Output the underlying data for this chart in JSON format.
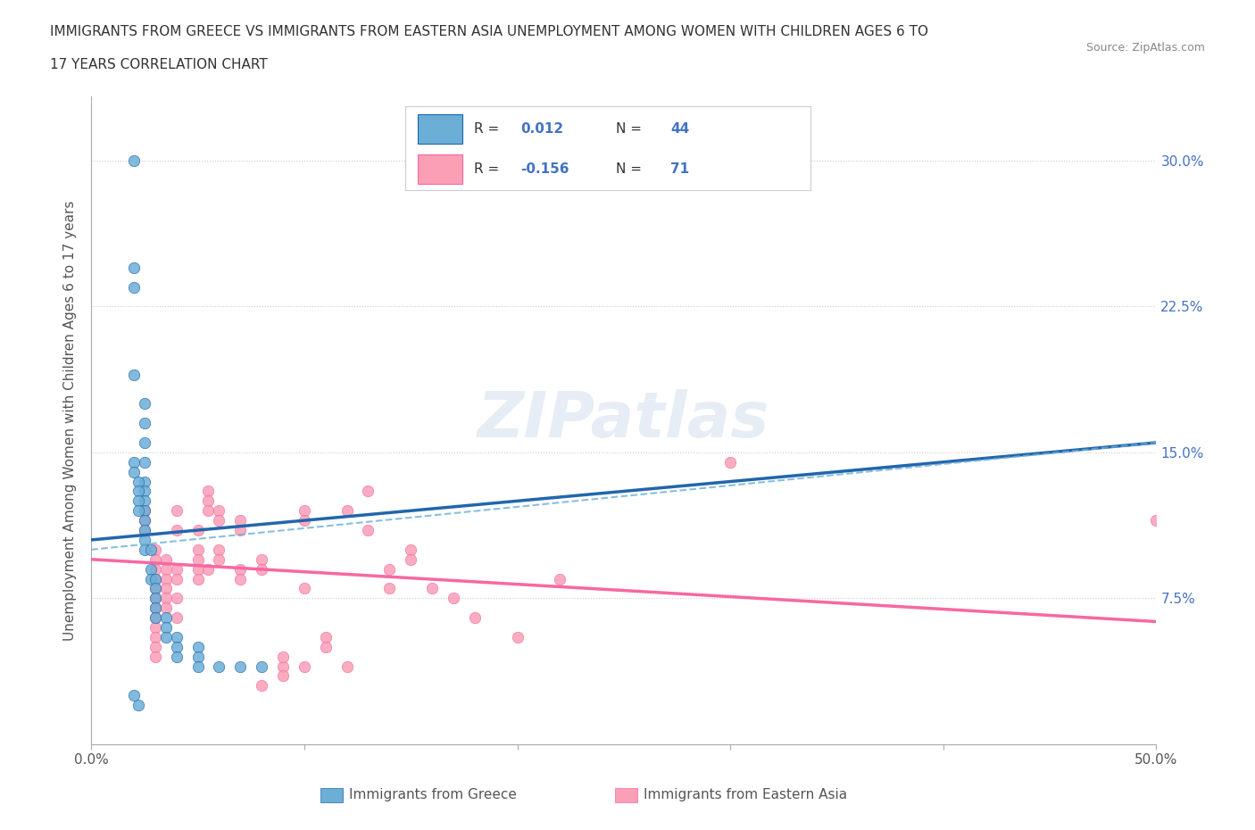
{
  "title_line1": "IMMIGRANTS FROM GREECE VS IMMIGRANTS FROM EASTERN ASIA UNEMPLOYMENT AMONG WOMEN WITH CHILDREN AGES 6 TO",
  "title_line2": "17 YEARS CORRELATION CHART",
  "source": "Source: ZipAtlas.com",
  "ylabel": "Unemployment Among Women with Children Ages 6 to 17 years",
  "xlim": [
    0.0,
    0.5
  ],
  "ylim": [
    0.0,
    0.333
  ],
  "xticks": [
    0.0,
    0.1,
    0.2,
    0.3,
    0.4,
    0.5
  ],
  "yticks": [
    0.0,
    0.075,
    0.15,
    0.225,
    0.3
  ],
  "color_greece": "#6baed6",
  "color_eastern_asia": "#fa9fb5",
  "trendline_greece_color": "#2166ac",
  "trendline_eastern_asia_color": "#f768a1",
  "background_color": "#ffffff",
  "grid_color": "#cccccc",
  "watermark": "ZIPatlas",
  "greece_scatter_x": [
    0.02,
    0.02,
    0.02,
    0.02,
    0.025,
    0.025,
    0.025,
    0.025,
    0.025,
    0.025,
    0.025,
    0.025,
    0.025,
    0.025,
    0.025,
    0.025,
    0.028,
    0.028,
    0.028,
    0.03,
    0.03,
    0.03,
    0.03,
    0.03,
    0.035,
    0.035,
    0.035,
    0.04,
    0.04,
    0.04,
    0.05,
    0.05,
    0.05,
    0.06,
    0.07,
    0.08,
    0.02,
    0.02,
    0.022,
    0.022,
    0.022,
    0.022,
    0.022,
    0.02
  ],
  "greece_scatter_y": [
    0.3,
    0.245,
    0.235,
    0.19,
    0.175,
    0.165,
    0.155,
    0.145,
    0.135,
    0.13,
    0.125,
    0.12,
    0.115,
    0.11,
    0.105,
    0.1,
    0.1,
    0.09,
    0.085,
    0.085,
    0.08,
    0.075,
    0.07,
    0.065,
    0.065,
    0.06,
    0.055,
    0.055,
    0.05,
    0.045,
    0.05,
    0.045,
    0.04,
    0.04,
    0.04,
    0.04,
    0.145,
    0.14,
    0.135,
    0.13,
    0.125,
    0.12,
    0.02,
    0.025
  ],
  "eastern_asia_scatter_x": [
    0.025,
    0.025,
    0.025,
    0.03,
    0.03,
    0.03,
    0.03,
    0.03,
    0.03,
    0.03,
    0.03,
    0.03,
    0.03,
    0.03,
    0.03,
    0.035,
    0.035,
    0.035,
    0.035,
    0.035,
    0.035,
    0.04,
    0.04,
    0.04,
    0.04,
    0.04,
    0.04,
    0.05,
    0.05,
    0.05,
    0.05,
    0.05,
    0.055,
    0.055,
    0.055,
    0.055,
    0.06,
    0.06,
    0.06,
    0.06,
    0.07,
    0.07,
    0.07,
    0.07,
    0.08,
    0.08,
    0.08,
    0.09,
    0.09,
    0.09,
    0.1,
    0.1,
    0.1,
    0.1,
    0.11,
    0.11,
    0.12,
    0.12,
    0.13,
    0.13,
    0.14,
    0.14,
    0.15,
    0.15,
    0.16,
    0.17,
    0.18,
    0.2,
    0.22,
    0.3,
    0.5
  ],
  "eastern_asia_scatter_y": [
    0.12,
    0.115,
    0.11,
    0.1,
    0.095,
    0.09,
    0.085,
    0.08,
    0.075,
    0.07,
    0.065,
    0.06,
    0.055,
    0.05,
    0.045,
    0.095,
    0.09,
    0.085,
    0.08,
    0.075,
    0.07,
    0.065,
    0.12,
    0.11,
    0.09,
    0.085,
    0.075,
    0.11,
    0.1,
    0.095,
    0.09,
    0.085,
    0.13,
    0.125,
    0.12,
    0.09,
    0.12,
    0.115,
    0.1,
    0.095,
    0.115,
    0.11,
    0.09,
    0.085,
    0.095,
    0.09,
    0.03,
    0.04,
    0.035,
    0.045,
    0.08,
    0.12,
    0.115,
    0.04,
    0.055,
    0.05,
    0.12,
    0.04,
    0.13,
    0.11,
    0.09,
    0.08,
    0.1,
    0.095,
    0.08,
    0.075,
    0.065,
    0.055,
    0.085,
    0.145,
    0.115
  ],
  "greece_trend_y_start": 0.105,
  "greece_trend_y_end": 0.155,
  "eastern_asia_trend_y_start": 0.095,
  "eastern_asia_trend_y_end": 0.063,
  "dashed_line_y_start": 0.1,
  "dashed_line_y_end": 0.155
}
